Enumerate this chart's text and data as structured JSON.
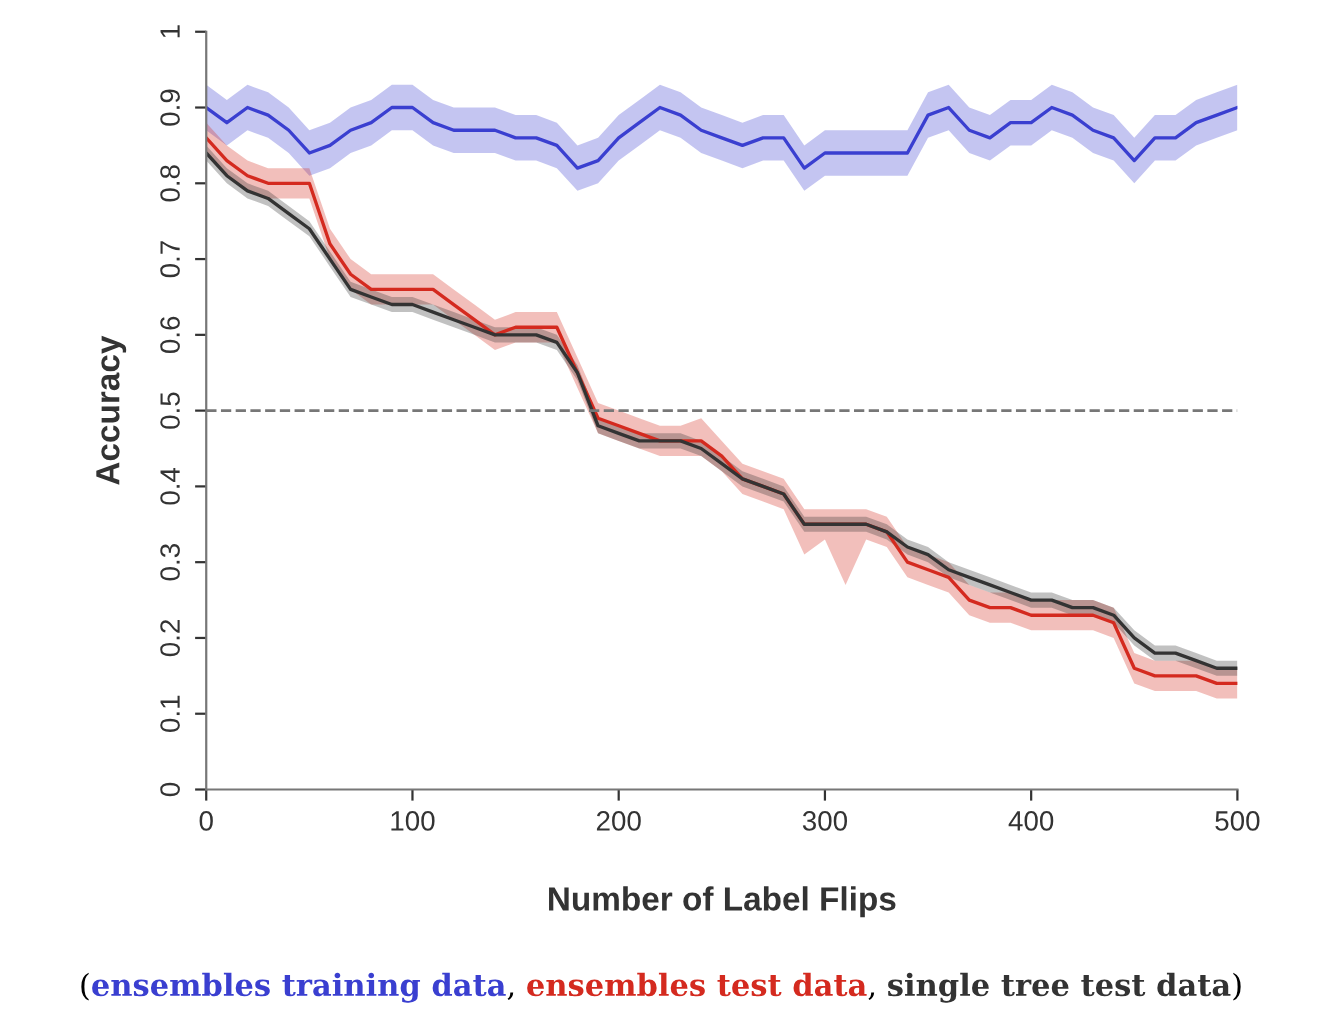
{
  "chart_data": {
    "type": "line",
    "xlabel": "Number of Label Flips",
    "ylabel": "Accuracy",
    "x": [
      0,
      10,
      20,
      30,
      40,
      50,
      60,
      70,
      80,
      90,
      100,
      110,
      120,
      130,
      140,
      150,
      160,
      170,
      180,
      190,
      200,
      210,
      220,
      230,
      240,
      250,
      260,
      270,
      280,
      290,
      300,
      310,
      320,
      330,
      340,
      350,
      360,
      370,
      380,
      390,
      400,
      410,
      420,
      430,
      440,
      450,
      460,
      470,
      480,
      490,
      500
    ],
    "xlim": [
      0,
      500
    ],
    "xticks": [
      0,
      100,
      200,
      300,
      400,
      500
    ],
    "ylim": [
      0,
      1
    ],
    "yticks": [
      0,
      0.1,
      0.2,
      0.3,
      0.4,
      0.5,
      0.6,
      0.7,
      0.8,
      0.9,
      1
    ],
    "grid": false,
    "legend": "bottom",
    "annotations": [
      "(",
      ", ",
      ", ",
      ")"
    ],
    "ref_lines": [
      {
        "axis": "y",
        "value": 0.5,
        "color": "#777777",
        "line_style": "dashed"
      }
    ],
    "series": [
      {
        "name": "ensembles training data",
        "color": "#3a3fd0",
        "values": [
          0.9,
          0.88,
          0.9,
          0.89,
          0.87,
          0.84,
          0.85,
          0.87,
          0.88,
          0.9,
          0.9,
          0.88,
          0.87,
          0.87,
          0.87,
          0.86,
          0.86,
          0.85,
          0.82,
          0.83,
          0.86,
          0.88,
          0.9,
          0.89,
          0.87,
          0.86,
          0.85,
          0.86,
          0.86,
          0.82,
          0.84,
          0.84,
          0.84,
          0.84,
          0.84,
          0.89,
          0.9,
          0.87,
          0.86,
          0.88,
          0.88,
          0.9,
          0.89,
          0.87,
          0.86,
          0.83,
          0.86,
          0.86,
          0.88,
          0.89,
          0.9
        ],
        "lower": [
          0.87,
          0.85,
          0.87,
          0.86,
          0.84,
          0.81,
          0.82,
          0.84,
          0.85,
          0.87,
          0.87,
          0.85,
          0.84,
          0.84,
          0.84,
          0.83,
          0.83,
          0.82,
          0.79,
          0.8,
          0.83,
          0.85,
          0.87,
          0.86,
          0.84,
          0.83,
          0.82,
          0.83,
          0.83,
          0.79,
          0.81,
          0.81,
          0.81,
          0.81,
          0.81,
          0.86,
          0.87,
          0.84,
          0.83,
          0.85,
          0.85,
          0.87,
          0.86,
          0.84,
          0.83,
          0.8,
          0.83,
          0.83,
          0.85,
          0.86,
          0.87
        ],
        "upper": [
          0.93,
          0.91,
          0.93,
          0.92,
          0.9,
          0.87,
          0.88,
          0.9,
          0.91,
          0.93,
          0.93,
          0.91,
          0.9,
          0.9,
          0.9,
          0.89,
          0.89,
          0.88,
          0.85,
          0.86,
          0.89,
          0.91,
          0.93,
          0.92,
          0.9,
          0.89,
          0.88,
          0.89,
          0.89,
          0.85,
          0.87,
          0.87,
          0.87,
          0.87,
          0.87,
          0.92,
          0.93,
          0.9,
          0.89,
          0.91,
          0.91,
          0.93,
          0.92,
          0.9,
          0.89,
          0.86,
          0.89,
          0.89,
          0.91,
          0.92,
          0.93
        ]
      },
      {
        "name": "ensembles test data",
        "color": "#d42a1f",
        "values": [
          0.86,
          0.83,
          0.81,
          0.8,
          0.8,
          0.8,
          0.72,
          0.68,
          0.66,
          0.66,
          0.66,
          0.66,
          0.64,
          0.62,
          0.6,
          0.61,
          0.61,
          0.61,
          0.55,
          0.49,
          0.48,
          0.47,
          0.46,
          0.46,
          0.46,
          0.44,
          0.41,
          0.4,
          0.39,
          0.35,
          0.35,
          0.35,
          0.35,
          0.34,
          0.3,
          0.29,
          0.28,
          0.25,
          0.24,
          0.24,
          0.23,
          0.23,
          0.23,
          0.23,
          0.22,
          0.16,
          0.15,
          0.15,
          0.15,
          0.14,
          0.14
        ],
        "lower": [
          0.84,
          0.81,
          0.79,
          0.78,
          0.78,
          0.78,
          0.7,
          0.66,
          0.64,
          0.64,
          0.64,
          0.64,
          0.62,
          0.6,
          0.58,
          0.59,
          0.59,
          0.59,
          0.53,
          0.47,
          0.46,
          0.45,
          0.44,
          0.44,
          0.44,
          0.42,
          0.39,
          0.38,
          0.37,
          0.31,
          0.33,
          0.27,
          0.33,
          0.32,
          0.28,
          0.27,
          0.26,
          0.23,
          0.22,
          0.22,
          0.21,
          0.21,
          0.21,
          0.21,
          0.2,
          0.14,
          0.13,
          0.13,
          0.13,
          0.12,
          0.12
        ],
        "upper": [
          0.88,
          0.85,
          0.83,
          0.82,
          0.82,
          0.82,
          0.74,
          0.7,
          0.68,
          0.68,
          0.68,
          0.68,
          0.66,
          0.64,
          0.62,
          0.63,
          0.63,
          0.63,
          0.57,
          0.51,
          0.5,
          0.49,
          0.48,
          0.48,
          0.49,
          0.46,
          0.43,
          0.42,
          0.41,
          0.37,
          0.37,
          0.37,
          0.37,
          0.36,
          0.32,
          0.31,
          0.3,
          0.27,
          0.26,
          0.26,
          0.25,
          0.25,
          0.25,
          0.25,
          0.24,
          0.18,
          0.17,
          0.17,
          0.17,
          0.16,
          0.16
        ]
      },
      {
        "name": "single tree test data",
        "color": "#333333",
        "values": [
          0.84,
          0.81,
          0.79,
          0.78,
          0.76,
          0.74,
          0.7,
          0.66,
          0.65,
          0.64,
          0.64,
          0.63,
          0.62,
          0.61,
          0.6,
          0.6,
          0.6,
          0.59,
          0.55,
          0.48,
          0.47,
          0.46,
          0.46,
          0.46,
          0.45,
          0.43,
          0.41,
          0.4,
          0.39,
          0.35,
          0.35,
          0.35,
          0.35,
          0.34,
          0.32,
          0.31,
          0.29,
          0.28,
          0.27,
          0.26,
          0.25,
          0.25,
          0.24,
          0.24,
          0.23,
          0.2,
          0.18,
          0.18,
          0.17,
          0.16,
          0.16
        ],
        "lower": [
          0.83,
          0.8,
          0.78,
          0.77,
          0.75,
          0.73,
          0.69,
          0.65,
          0.64,
          0.63,
          0.63,
          0.62,
          0.61,
          0.6,
          0.59,
          0.59,
          0.59,
          0.58,
          0.54,
          0.47,
          0.46,
          0.45,
          0.45,
          0.45,
          0.44,
          0.42,
          0.4,
          0.39,
          0.38,
          0.34,
          0.34,
          0.34,
          0.34,
          0.33,
          0.31,
          0.3,
          0.28,
          0.27,
          0.26,
          0.25,
          0.24,
          0.24,
          0.23,
          0.23,
          0.22,
          0.19,
          0.17,
          0.17,
          0.16,
          0.15,
          0.15
        ],
        "upper": [
          0.85,
          0.82,
          0.8,
          0.79,
          0.77,
          0.75,
          0.71,
          0.67,
          0.66,
          0.65,
          0.65,
          0.64,
          0.63,
          0.62,
          0.61,
          0.61,
          0.61,
          0.6,
          0.56,
          0.49,
          0.48,
          0.47,
          0.47,
          0.47,
          0.46,
          0.44,
          0.42,
          0.41,
          0.4,
          0.36,
          0.36,
          0.36,
          0.36,
          0.35,
          0.33,
          0.32,
          0.3,
          0.29,
          0.28,
          0.27,
          0.26,
          0.26,
          0.25,
          0.25,
          0.24,
          0.21,
          0.19,
          0.19,
          0.18,
          0.17,
          0.17
        ]
      }
    ]
  }
}
